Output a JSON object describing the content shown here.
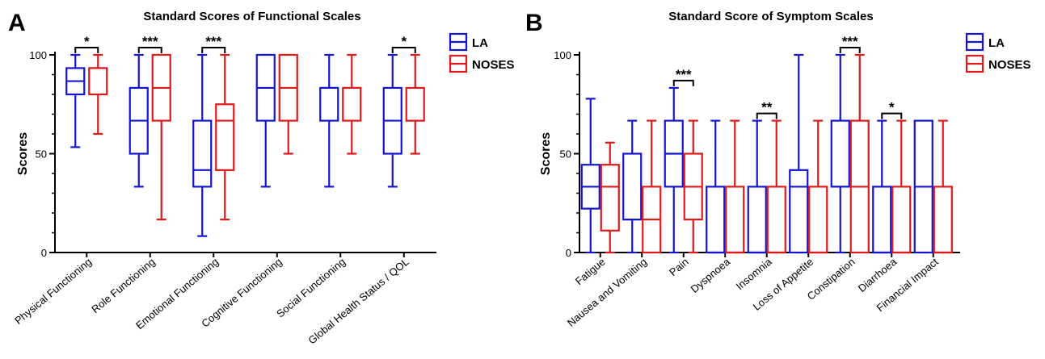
{
  "chart_data": [
    {
      "panel": "A",
      "type": "box",
      "title": "Standard Scores of Functional Scales",
      "ylabel": "Scores",
      "ylim": [
        0,
        100
      ],
      "yticks": [
        0,
        50,
        100
      ],
      "categories": [
        "Physical Functioning",
        "Role Functioning",
        "Emotional Functioning",
        "Cognitive Functioning",
        "Social Functioning",
        "Global Health Status / QOL"
      ],
      "legend": {
        "position": "top-right"
      },
      "series": [
        {
          "name": "LA",
          "color": "#1414d2",
          "boxes": [
            {
              "min": 53.3,
              "q1": 80,
              "median": 86.7,
              "q3": 93.3,
              "max": 100
            },
            {
              "min": 33.3,
              "q1": 50,
              "median": 66.7,
              "q3": 83.3,
              "max": 100
            },
            {
              "min": 8.3,
              "q1": 33.3,
              "median": 41.7,
              "q3": 66.7,
              "max": 100
            },
            {
              "min": 33.3,
              "q1": 66.7,
              "median": 83.3,
              "q3": 100,
              "max": 100
            },
            {
              "min": 33.3,
              "q1": 66.7,
              "median": 83.3,
              "q3": 83.3,
              "max": 100
            },
            {
              "min": 33.3,
              "q1": 50,
              "median": 66.7,
              "q3": 83.3,
              "max": 100
            }
          ]
        },
        {
          "name": "NOSES",
          "color": "#e01a1a",
          "boxes": [
            {
              "min": 60,
              "q1": 80,
              "median": 93.3,
              "q3": 93.3,
              "max": 100
            },
            {
              "min": 16.7,
              "q1": 66.7,
              "median": 83.3,
              "q3": 100,
              "max": 100
            },
            {
              "min": 16.7,
              "q1": 41.7,
              "median": 66.7,
              "q3": 75,
              "max": 100
            },
            {
              "min": 50,
              "q1": 66.7,
              "median": 83.3,
              "q3": 100,
              "max": 100
            },
            {
              "min": 50,
              "q1": 66.7,
              "median": 83.3,
              "q3": 83.3,
              "max": 100
            },
            {
              "min": 50,
              "q1": 66.7,
              "median": 66.7,
              "q3": 83.3,
              "max": 100
            }
          ]
        }
      ],
      "significance": [
        {
          "category": 0,
          "label": "*"
        },
        {
          "category": 1,
          "label": "***"
        },
        {
          "category": 2,
          "label": "***"
        },
        {
          "category": 5,
          "label": "*"
        }
      ]
    },
    {
      "panel": "B",
      "type": "box",
      "title": "Standard Score of Symptom Scales",
      "ylabel": "Scores",
      "ylim": [
        0,
        100
      ],
      "yticks": [
        0,
        50,
        100
      ],
      "categories": [
        "Fatigue",
        "Nausea and Vomiting",
        "Pain",
        "Dyspnoea",
        "Insomnia",
        "Loss of Appetite",
        "Constipation",
        "Diarrhoea",
        "Financial Impact"
      ],
      "legend": {
        "position": "top-right"
      },
      "series": [
        {
          "name": "LA",
          "color": "#1414d2",
          "boxes": [
            {
              "min": 0,
              "q1": 22.2,
              "median": 33.3,
              "q3": 44.4,
              "max": 77.8
            },
            {
              "min": 0,
              "q1": 16.7,
              "median": 16.7,
              "q3": 50,
              "max": 66.7
            },
            {
              "min": 0,
              "q1": 33.3,
              "median": 50,
              "q3": 66.7,
              "max": 83.3
            },
            {
              "min": 0,
              "q1": 0,
              "median": 0,
              "q3": 33.3,
              "max": 66.7
            },
            {
              "min": 0,
              "q1": 0,
              "median": 0,
              "q3": 33.3,
              "max": 66.7
            },
            {
              "min": 0,
              "q1": 0,
              "median": 33.3,
              "q3": 41.7,
              "max": 100
            },
            {
              "min": 0,
              "q1": 33.3,
              "median": 33.3,
              "q3": 66.7,
              "max": 100
            },
            {
              "min": 0,
              "q1": 0,
              "median": 0,
              "q3": 33.3,
              "max": 66.7
            },
            {
              "min": 0,
              "q1": 0,
              "median": 33.3,
              "q3": 66.7,
              "max": 66.7
            }
          ]
        },
        {
          "name": "NOSES",
          "color": "#e01a1a",
          "boxes": [
            {
              "min": 0,
              "q1": 11.1,
              "median": 33.3,
              "q3": 44.4,
              "max": 55.6
            },
            {
              "min": 0,
              "q1": 0,
              "median": 16.7,
              "q3": 33.3,
              "max": 66.7
            },
            {
              "min": 0,
              "q1": 16.7,
              "median": 33.3,
              "q3": 50,
              "max": 66.7
            },
            {
              "min": 0,
              "q1": 0,
              "median": 0,
              "q3": 33.3,
              "max": 66.7
            },
            {
              "min": 0,
              "q1": 0,
              "median": 0,
              "q3": 33.3,
              "max": 66.7
            },
            {
              "min": 0,
              "q1": 0,
              "median": 0,
              "q3": 33.3,
              "max": 66.7
            },
            {
              "min": 0,
              "q1": 0,
              "median": 33.3,
              "q3": 66.7,
              "max": 100
            },
            {
              "min": 0,
              "q1": 0,
              "median": 0,
              "q3": 33.3,
              "max": 66.7
            },
            {
              "min": 0,
              "q1": 0,
              "median": 0,
              "q3": 33.3,
              "max": 66.7
            }
          ]
        }
      ],
      "significance": [
        {
          "category": 2,
          "label": "***"
        },
        {
          "category": 4,
          "label": "**"
        },
        {
          "category": 6,
          "label": "***"
        },
        {
          "category": 7,
          "label": "*"
        }
      ]
    }
  ]
}
